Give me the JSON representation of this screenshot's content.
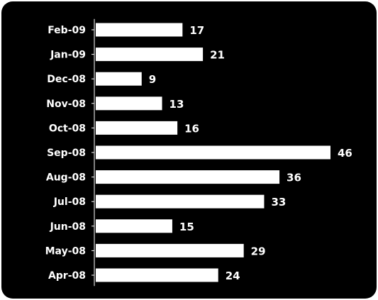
{
  "chart_data": {
    "type": "bar",
    "orientation": "horizontal",
    "categories": [
      "Feb-09",
      "Jan-09",
      "Dec-08",
      "Nov-08",
      "Oct-08",
      "Sep-08",
      "Aug-08",
      "Jul-08",
      "Jun-08",
      "May-08",
      "Apr-08"
    ],
    "values": [
      17,
      21,
      9,
      13,
      16,
      46,
      36,
      33,
      15,
      29,
      24
    ],
    "title": "",
    "xlabel": "",
    "ylabel": "",
    "xlim": [
      0,
      46
    ],
    "grid": false,
    "legend": "none",
    "data_labels": true
  },
  "colors": {
    "background": "#000000",
    "bar": "#ffffff",
    "text": "#ffffff",
    "page": "#ffffff"
  }
}
